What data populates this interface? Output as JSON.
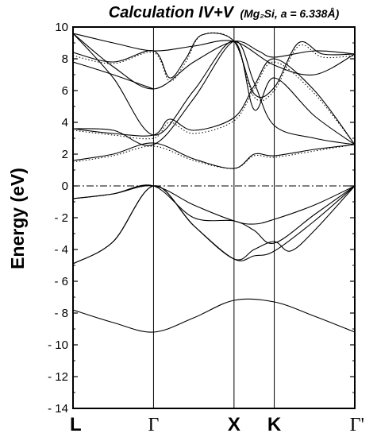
{
  "chart_data": {
    "type": "line",
    "title": {
      "main": "Calculation IV+V",
      "sub": "(Mg₂Si, a = 6.338Å)"
    },
    "ylabel": "Energy (eV)",
    "ylim": [
      -14,
      10
    ],
    "yticks": [
      10,
      8,
      6,
      4,
      2,
      0,
      -2,
      -4,
      -6,
      -8,
      -10,
      -12,
      -14
    ],
    "ytick_labels": [
      "10",
      "8",
      "6",
      "4",
      "2",
      "0",
      "- 2",
      "- 4",
      "- 6",
      "- 8",
      "- 10",
      "- 12",
      "- 14"
    ],
    "kpoints": [
      {
        "label": "L",
        "pos": 0
      },
      {
        "label": "Γ",
        "pos": 1
      },
      {
        "label": "X",
        "pos": 2
      },
      {
        "label": "K",
        "pos": 2.5
      },
      {
        "label": "Γ'",
        "pos": 3.5
      }
    ],
    "fermi_level": 0,
    "colors": {
      "line": "#000000",
      "axis": "#000000"
    },
    "series": [
      {
        "style": "solid",
        "points": [
          [
            0,
            -0.8
          ],
          [
            0.5,
            -0.5
          ],
          [
            1,
            0
          ],
          [
            1.5,
            -1.2
          ],
          [
            2,
            -2.2
          ],
          [
            2.25,
            -2.4
          ],
          [
            2.5,
            -2.1
          ],
          [
            3,
            -1.2
          ],
          [
            3.5,
            0
          ]
        ]
      },
      {
        "style": "solid",
        "points": [
          [
            0,
            -0.8
          ],
          [
            0.5,
            -0.5
          ],
          [
            1,
            0
          ],
          [
            1.5,
            -2
          ],
          [
            2,
            -2.2
          ],
          [
            2.25,
            -2.8
          ],
          [
            2.5,
            -3.6
          ],
          [
            3,
            -1.8
          ],
          [
            3.5,
            0
          ]
        ]
      },
      {
        "style": "solid",
        "points": [
          [
            0,
            -4.9
          ],
          [
            0.5,
            -3.5
          ],
          [
            1,
            0
          ],
          [
            1.5,
            -2.5
          ],
          [
            2,
            -4.6
          ],
          [
            2.25,
            -4.4
          ],
          [
            2.5,
            -4.1
          ],
          [
            3,
            -2.2
          ],
          [
            3.5,
            0
          ]
        ]
      },
      {
        "style": "solid",
        "points": [
          [
            0,
            -4.9
          ],
          [
            0.5,
            -3.5
          ],
          [
            1,
            0
          ],
          [
            1.5,
            -2.5
          ],
          [
            2,
            -4.6
          ],
          [
            2.25,
            -4.0
          ],
          [
            2.5,
            -3.5
          ],
          [
            2.7,
            -4.1
          ],
          [
            3,
            -2.8
          ],
          [
            3.5,
            0
          ]
        ]
      },
      {
        "style": "solid",
        "points": [
          [
            0,
            -7.8
          ],
          [
            0.5,
            -8.6
          ],
          [
            1,
            -9.2
          ],
          [
            1.5,
            -8.3
          ],
          [
            2,
            -7.2
          ],
          [
            2.5,
            -7.3
          ],
          [
            3,
            -8.2
          ],
          [
            3.5,
            -9.2
          ]
        ]
      },
      {
        "style": "solid",
        "points": [
          [
            0,
            1.6
          ],
          [
            0.5,
            2.0
          ],
          [
            1,
            2.7
          ],
          [
            1.5,
            1.7
          ],
          [
            2,
            1.1
          ],
          [
            2.25,
            2.0
          ],
          [
            2.5,
            1.9
          ],
          [
            3,
            2.3
          ],
          [
            3.5,
            2.6
          ]
        ]
      },
      {
        "style": "solid",
        "points": [
          [
            0,
            3.6
          ],
          [
            0.5,
            3.5
          ],
          [
            1,
            2.6
          ],
          [
            1.5,
            5.5
          ],
          [
            2,
            9.1
          ],
          [
            2.25,
            6.5
          ],
          [
            2.5,
            3.8
          ],
          [
            3,
            3.0
          ],
          [
            3.5,
            2.6
          ]
        ]
      },
      {
        "style": "solid",
        "points": [
          [
            0,
            3.6
          ],
          [
            0.5,
            3.3
          ],
          [
            1,
            3.2
          ],
          [
            1.2,
            4.2
          ],
          [
            1.5,
            3.5
          ],
          [
            2,
            4.3
          ],
          [
            2.25,
            6.3
          ],
          [
            2.5,
            8.0
          ],
          [
            3,
            6.0
          ],
          [
            3.5,
            2.6
          ]
        ]
      },
      {
        "style": "solid",
        "points": [
          [
            0,
            9.6
          ],
          [
            0.5,
            6.8
          ],
          [
            1,
            3.2
          ],
          [
            1.5,
            6.0
          ],
          [
            2,
            9.1
          ],
          [
            2.25,
            4.8
          ],
          [
            2.5,
            6.8
          ],
          [
            3,
            4.4
          ],
          [
            3.5,
            2.6
          ]
        ]
      },
      {
        "style": "solid",
        "points": [
          [
            0,
            9.6
          ],
          [
            0.5,
            7.5
          ],
          [
            1,
            6.1
          ],
          [
            1.5,
            7.8
          ],
          [
            2,
            9.1
          ],
          [
            2.3,
            8.5
          ],
          [
            2.5,
            8.1
          ],
          [
            3,
            8.5
          ],
          [
            3.5,
            8.3
          ]
        ]
      },
      {
        "style": "solid",
        "points": [
          [
            0,
            9.6
          ],
          [
            0.5,
            9.0
          ],
          [
            1,
            8.5
          ],
          [
            1.5,
            8.8
          ],
          [
            2,
            9.1
          ],
          [
            2.5,
            7.6
          ],
          [
            3,
            7.0
          ],
          [
            3.5,
            8.3
          ]
        ]
      },
      {
        "style": "solid",
        "points": [
          [
            0,
            8.4
          ],
          [
            0.5,
            7.8
          ],
          [
            1,
            8.5
          ],
          [
            1.2,
            6.8
          ],
          [
            1.4,
            8.0
          ],
          [
            1.6,
            9.5
          ],
          [
            2,
            9.1
          ],
          [
            2.25,
            5.8
          ],
          [
            2.5,
            6.2
          ],
          [
            2.8,
            9.0
          ],
          [
            3.1,
            8.3
          ],
          [
            3.5,
            8.3
          ]
        ]
      },
      {
        "style": "solid",
        "points": [
          [
            0,
            7.8
          ],
          [
            0.5,
            7.0
          ],
          [
            1,
            6.1
          ]
        ]
      },
      {
        "style": "dotted",
        "points": [
          [
            0,
            1.5
          ],
          [
            0.5,
            1.9
          ],
          [
            1,
            2.5
          ],
          [
            1.5,
            1.6
          ],
          [
            2,
            1.1
          ],
          [
            2.25,
            1.9
          ],
          [
            2.5,
            1.8
          ],
          [
            3,
            2.2
          ],
          [
            3.5,
            2.6
          ]
        ]
      },
      {
        "style": "dotted",
        "points": [
          [
            0,
            8.2
          ],
          [
            0.5,
            7.7
          ],
          [
            1,
            8.4
          ],
          [
            1.2,
            6.6
          ],
          [
            1.4,
            7.8
          ],
          [
            1.6,
            9.5
          ],
          [
            2,
            9.1
          ],
          [
            2.25,
            5.6
          ],
          [
            2.5,
            6.0
          ],
          [
            2.8,
            8.8
          ],
          [
            3.1,
            8.1
          ],
          [
            3.5,
            8.2
          ]
        ]
      },
      {
        "style": "dotted",
        "points": [
          [
            0,
            3.5
          ],
          [
            0.5,
            3.2
          ],
          [
            1,
            3.0
          ],
          [
            1.2,
            4.0
          ],
          [
            1.5,
            3.3
          ],
          [
            2,
            4.1
          ],
          [
            2.25,
            6.1
          ],
          [
            2.5,
            7.8
          ],
          [
            3,
            5.8
          ],
          [
            3.5,
            2.6
          ]
        ]
      }
    ]
  }
}
